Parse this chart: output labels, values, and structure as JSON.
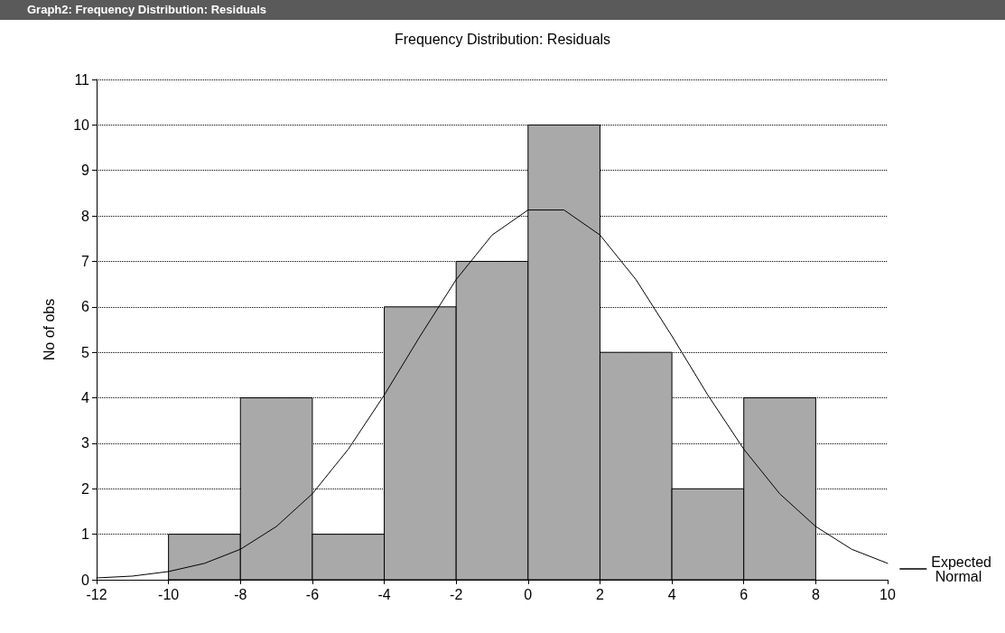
{
  "chart_data": {
    "type": "histogram",
    "title": "Frequency Distribution: Residuals",
    "annotations": [
      "Graph2: Frequency Distribution: Residuals"
    ],
    "ylabel": "No of obs",
    "bins": [
      -10,
      -8,
      -6,
      -4,
      -2,
      0,
      2,
      4,
      6,
      8
    ],
    "values": [
      1,
      4,
      1,
      6,
      7,
      10,
      5,
      2,
      4
    ],
    "color": "#a9a9a9",
    "series": [
      {
        "type": "line",
        "name": "Expected Normal",
        "color": "#000000",
        "x": [
          -12,
          -11,
          -10,
          -9,
          -8,
          -7,
          -6,
          -5,
          -4,
          -3,
          -2,
          -1,
          0,
          1,
          2,
          3,
          4,
          5,
          6,
          7,
          8,
          9,
          10
        ],
        "values": [
          0.04,
          0.08,
          0.18,
          0.36,
          0.67,
          1.17,
          1.89,
          2.87,
          4.06,
          5.36,
          6.6,
          7.58,
          8.13,
          8.13,
          7.58,
          6.6,
          5.36,
          4.06,
          2.87,
          1.89,
          1.17,
          0.67,
          0.36
        ]
      }
    ],
    "xlim": [
      -12,
      10
    ],
    "xticks": [
      -12,
      -10,
      -8,
      -6,
      -4,
      -2,
      0,
      2,
      4,
      6,
      8,
      10
    ],
    "ylim": [
      0,
      11
    ],
    "yticks": [
      0,
      1,
      2,
      3,
      4,
      5,
      6,
      7,
      8,
      9,
      10,
      11
    ],
    "grid": "y",
    "legend": "bottom right",
    "marker": "none",
    "line_style": "solid"
  }
}
